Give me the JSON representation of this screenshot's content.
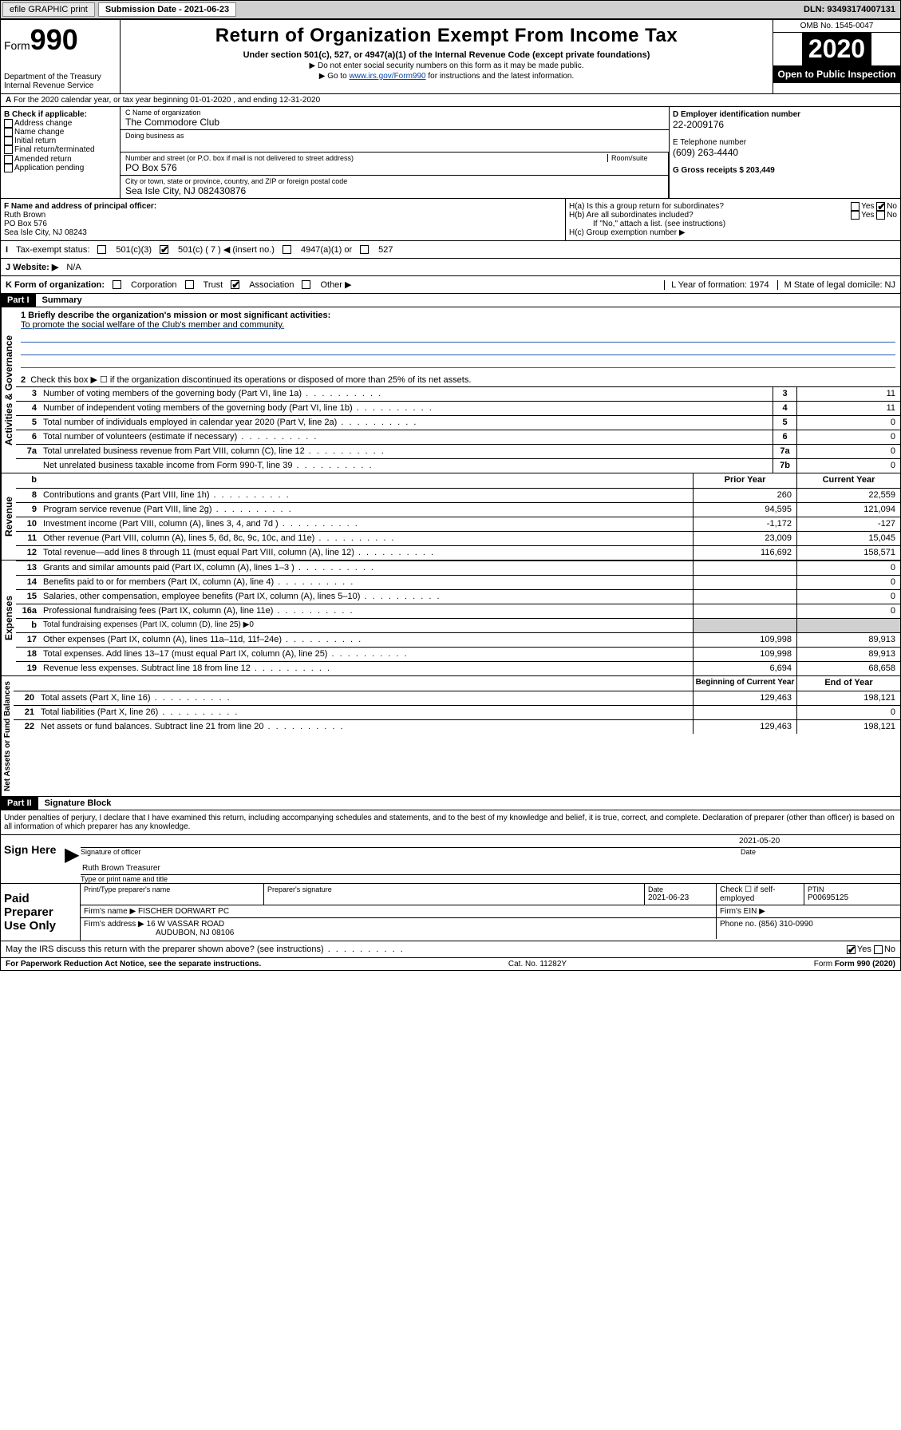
{
  "topbar": {
    "efile_btn": "efile GRAPHIC print",
    "sub_date_label": "Submission Date - 2021-06-23",
    "dln_label": "DLN: 93493174007131"
  },
  "header": {
    "form_label": "Form",
    "form_number": "990",
    "dept": "Department of the Treasury\nInternal Revenue Service",
    "title": "Return of Organization Exempt From Income Tax",
    "subtitle": "Under section 501(c), 527, or 4947(a)(1) of the Internal Revenue Code (except private foundations)",
    "note1": "▶ Do not enter social security numbers on this form as it may be made public.",
    "note2_prefix": "▶ Go to ",
    "note2_link": "www.irs.gov/Form990",
    "note2_suffix": " for instructions and the latest information.",
    "omb": "OMB No. 1545-0047",
    "year": "2020",
    "open_pub": "Open to Public Inspection"
  },
  "line_a": "For the 2020 calendar year, or tax year beginning 01-01-2020    , and ending 12-31-2020",
  "box_b": {
    "label": "B Check if applicable:",
    "items": [
      "Address change",
      "Name change",
      "Initial return",
      "Final return/terminated",
      "Amended return",
      "Application pending"
    ]
  },
  "box_c": {
    "name_label": "C Name of organization",
    "name": "The Commodore Club",
    "dba_label": "Doing business as",
    "addr_label": "Number and street (or P.O. box if mail is not delivered to street address)",
    "room_label": "Room/suite",
    "addr": "PO Box 576",
    "city_label": "City or town, state or province, country, and ZIP or foreign postal code",
    "city": "Sea Isle City, NJ  082430876"
  },
  "box_d": {
    "label": "D Employer identification number",
    "value": "22-2009176"
  },
  "box_e": {
    "label": "E Telephone number",
    "value": "(609) 263-4440"
  },
  "box_g": {
    "label": "G Gross receipts $ 203,449"
  },
  "box_f": {
    "label": "F  Name and address of principal officer:",
    "name": "Ruth Brown",
    "addr1": "PO Box 576",
    "addr2": "Sea Isle City, NJ  08243"
  },
  "box_h": {
    "a_label": "H(a)  Is this a group return for subordinates?",
    "b_label": "H(b)  Are all subordinates included?",
    "b_note": "If \"No,\" attach a list. (see instructions)",
    "c_label": "H(c)  Group exemption number ▶"
  },
  "tax_status": {
    "label": "Tax-exempt status:",
    "opt1": "501(c)(3)",
    "opt2": "501(c) ( 7 ) ◀ (insert no.)",
    "opt3": "4947(a)(1) or",
    "opt4": "527"
  },
  "line_j": {
    "label": "J   Website: ▶",
    "value": "N/A"
  },
  "line_k": {
    "label": "K Form of organization:",
    "opts": [
      "Corporation",
      "Trust",
      "Association",
      "Other ▶"
    ]
  },
  "line_l": {
    "label": "L Year of formation: 1974"
  },
  "line_m": {
    "label": "M State of legal domicile: NJ"
  },
  "part1": {
    "header": "Part I",
    "title": "Summary",
    "q1_label": "1  Briefly describe the organization's mission or most significant activities:",
    "q1_value": "To promote the social welfare of the Club's member and community.",
    "q2": "Check this box ▶ ☐  if the organization discontinued its operations or disposed of more than 25% of its net assets.",
    "rows_gov": [
      {
        "n": "3",
        "d": "Number of voting members of the governing body (Part VI, line 1a)",
        "rn": "3",
        "v": "11"
      },
      {
        "n": "4",
        "d": "Number of independent voting members of the governing body (Part VI, line 1b)",
        "rn": "4",
        "v": "11"
      },
      {
        "n": "5",
        "d": "Total number of individuals employed in calendar year 2020 (Part V, line 2a)",
        "rn": "5",
        "v": "0"
      },
      {
        "n": "6",
        "d": "Total number of volunteers (estimate if necessary)",
        "rn": "6",
        "v": "0"
      },
      {
        "n": "7a",
        "d": "Total unrelated business revenue from Part VIII, column (C), line 12",
        "rn": "7a",
        "v": "0"
      },
      {
        "n": "",
        "d": "Net unrelated business taxable income from Form 990-T, line 39",
        "rn": "7b",
        "v": "0"
      }
    ],
    "col_headers": {
      "prior": "Prior Year",
      "current": "Current Year",
      "begin": "Beginning of Current Year",
      "end": "End of Year"
    },
    "rows_rev": [
      {
        "n": "8",
        "d": "Contributions and grants (Part VIII, line 1h)",
        "p": "260",
        "c": "22,559"
      },
      {
        "n": "9",
        "d": "Program service revenue (Part VIII, line 2g)",
        "p": "94,595",
        "c": "121,094"
      },
      {
        "n": "10",
        "d": "Investment income (Part VIII, column (A), lines 3, 4, and 7d )",
        "p": "-1,172",
        "c": "-127"
      },
      {
        "n": "11",
        "d": "Other revenue (Part VIII, column (A), lines 5, 6d, 8c, 9c, 10c, and 11e)",
        "p": "23,009",
        "c": "15,045"
      },
      {
        "n": "12",
        "d": "Total revenue—add lines 8 through 11 (must equal Part VIII, column (A), line 12)",
        "p": "116,692",
        "c": "158,571"
      }
    ],
    "rows_exp": [
      {
        "n": "13",
        "d": "Grants and similar amounts paid (Part IX, column (A), lines 1–3 )",
        "p": "",
        "c": "0"
      },
      {
        "n": "14",
        "d": "Benefits paid to or for members (Part IX, column (A), line 4)",
        "p": "",
        "c": "0"
      },
      {
        "n": "15",
        "d": "Salaries, other compensation, employee benefits (Part IX, column (A), lines 5–10)",
        "p": "",
        "c": "0"
      },
      {
        "n": "16a",
        "d": "Professional fundraising fees (Part IX, column (A), line 11e)",
        "p": "",
        "c": "0"
      },
      {
        "n": "b",
        "d": "Total fundraising expenses (Part IX, column (D), line 25) ▶0",
        "p": "shaded",
        "c": "shaded"
      },
      {
        "n": "17",
        "d": "Other expenses (Part IX, column (A), lines 11a–11d, 11f–24e)",
        "p": "109,998",
        "c": "89,913"
      },
      {
        "n": "18",
        "d": "Total expenses. Add lines 13–17 (must equal Part IX, column (A), line 25)",
        "p": "109,998",
        "c": "89,913"
      },
      {
        "n": "19",
        "d": "Revenue less expenses. Subtract line 18 from line 12",
        "p": "6,694",
        "c": "68,658"
      }
    ],
    "rows_net": [
      {
        "n": "20",
        "d": "Total assets (Part X, line 16)",
        "p": "129,463",
        "c": "198,121"
      },
      {
        "n": "21",
        "d": "Total liabilities (Part X, line 26)",
        "p": "",
        "c": "0"
      },
      {
        "n": "22",
        "d": "Net assets or fund balances. Subtract line 21 from line 20",
        "p": "129,463",
        "c": "198,121"
      }
    ],
    "vlabels": {
      "gov": "Activities & Governance",
      "rev": "Revenue",
      "exp": "Expenses",
      "net": "Net Assets or Fund Balances"
    }
  },
  "part2": {
    "header": "Part II",
    "title": "Signature Block",
    "perjury": "Under penalties of perjury, I declare that I have examined this return, including accompanying schedules and statements, and to the best of my knowledge and belief, it is true, correct, and complete. Declaration of preparer (other than officer) is based on all information of which preparer has any knowledge.",
    "sign_here": "Sign Here",
    "sig_off": "Signature of officer",
    "sig_date": "2021-05-20",
    "date_label": "Date",
    "officer_name": "Ruth Brown  Treasurer",
    "type_name": "Type or print name and title",
    "paid_prep": "Paid Preparer Use Only",
    "prep_name_label": "Print/Type preparer's name",
    "prep_sig_label": "Preparer's signature",
    "prep_date_label": "Date",
    "prep_date": "2021-06-23",
    "check_if": "Check ☐ if self-employed",
    "ptin_label": "PTIN",
    "ptin": "P00695125",
    "firm_name_label": "Firm's name     ▶",
    "firm_name": "FISCHER DORWART PC",
    "firm_ein_label": "Firm's EIN ▶",
    "firm_addr_label": "Firm's address ▶",
    "firm_addr": "16 W VASSAR ROAD",
    "firm_city": "AUDUBON, NJ  08106",
    "phone_label": "Phone no. (856) 310-0990",
    "discuss": "May the IRS discuss this return with the preparer shown above? (see instructions)",
    "yes": "Yes",
    "no": "No"
  },
  "footer": {
    "pra": "For Paperwork Reduction Act Notice, see the separate instructions.",
    "cat": "Cat. No. 11282Y",
    "form": "Form 990 (2020)"
  }
}
